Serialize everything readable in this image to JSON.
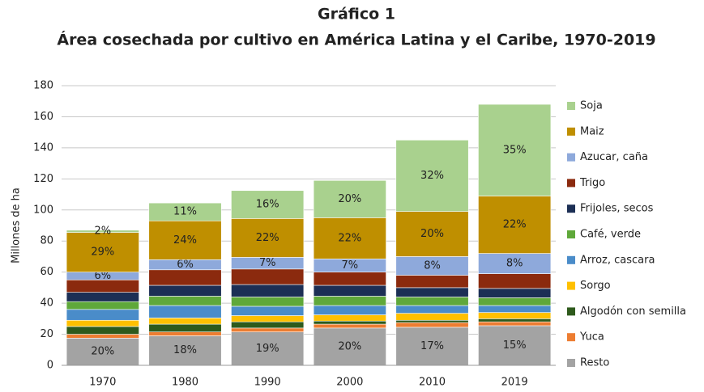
{
  "chart_data": {
    "type": "stacked_bar",
    "title": "Gráfico 1",
    "subtitle": "Área cosechada por cultivo en América Latina y el Caribe, 1970-2019",
    "y_label": "Millones de ha",
    "categories": [
      "1970",
      "1980",
      "1990",
      "2000",
      "2010",
      "2019"
    ],
    "ylim": [
      0,
      180
    ],
    "yticks": [
      0,
      20,
      40,
      60,
      80,
      100,
      120,
      140,
      160,
      180
    ],
    "grid": true,
    "legend": "right",
    "series": [
      {
        "name": "Resto",
        "color": "#a3a3a3",
        "values": [
          17.5,
          19,
          21.5,
          24,
          24.5,
          25.5
        ],
        "percent_labels": [
          "20%",
          "18%",
          "19%",
          "20%",
          "17%",
          "15%"
        ]
      },
      {
        "name": "Yuca",
        "color": "#ed7d31",
        "values": [
          2.5,
          2.5,
          2.5,
          2.5,
          3,
          2.5
        ]
      },
      {
        "name": "Algodón con semilla",
        "color": "#2e5a1c",
        "values": [
          5,
          5,
          4,
          2,
          1.5,
          2
        ]
      },
      {
        "name": "Sorgo",
        "color": "#ffc000",
        "values": [
          4,
          4,
          4,
          4,
          4.5,
          4
        ]
      },
      {
        "name": "Arroz, cascara",
        "color": "#4a8cc9",
        "values": [
          7,
          8,
          6,
          6,
          5,
          4.5
        ]
      },
      {
        "name": "Café, verde",
        "color": "#5fa83a",
        "values": [
          5,
          6,
          6,
          6,
          5.5,
          5
        ]
      },
      {
        "name": "Frijoles, secos",
        "color": "#1c2f55",
        "values": [
          6,
          7,
          8,
          7,
          6,
          6
        ]
      },
      {
        "name": "Trigo",
        "color": "#8b2a0e",
        "values": [
          8,
          10,
          10,
          8.5,
          8,
          9.5
        ]
      },
      {
        "name": "Azucar, caña",
        "color": "#8ea9db",
        "values": [
          5,
          6.5,
          7.5,
          8.5,
          12,
          13
        ],
        "percent_labels": [
          "6%",
          "6%",
          "7%",
          "7%",
          "8%",
          "8%"
        ]
      },
      {
        "name": "Maiz",
        "color": "#bf8f00",
        "values": [
          25.5,
          25,
          25,
          26.5,
          29,
          37
        ],
        "percent_labels": [
          "29%",
          "24%",
          "22%",
          "22%",
          "20%",
          "22%"
        ]
      },
      {
        "name": "Soja",
        "color": "#a9d18e",
        "values": [
          1.5,
          11.5,
          18,
          24,
          46,
          59
        ],
        "percent_labels": [
          "2%",
          "11%",
          "16%",
          "20%",
          "32%",
          "35%"
        ]
      }
    ]
  }
}
